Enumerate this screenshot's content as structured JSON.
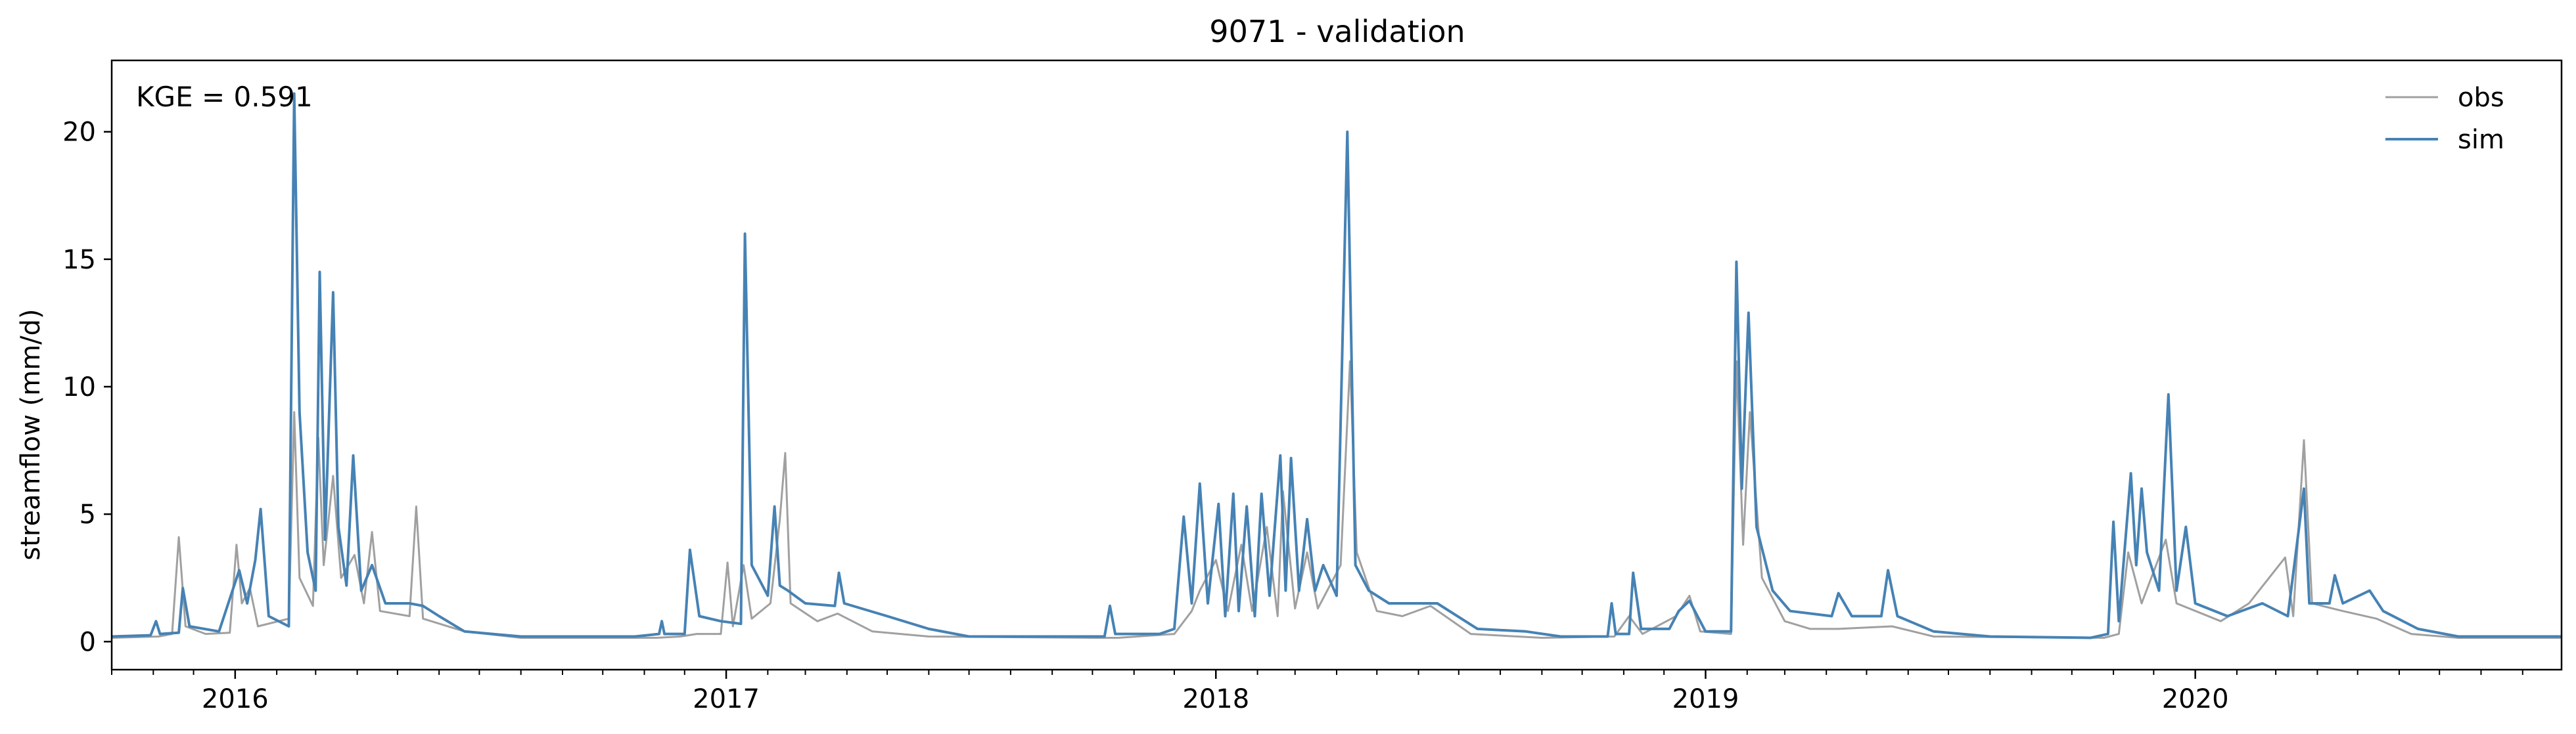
{
  "chart_data": {
    "type": "line",
    "title": "9071 - validation",
    "xlabel": "",
    "ylabel": "streamflow (mm/d)",
    "xlim": [
      "2015-10-01",
      "2020-09-30"
    ],
    "ylim": [
      -1.1,
      22.8
    ],
    "x_ticks": [
      "2016",
      "2017",
      "2018",
      "2019",
      "2020"
    ],
    "y_ticks": [
      "0",
      "5",
      "10",
      "15",
      "20"
    ],
    "y_tick_values": [
      0,
      5,
      10,
      15,
      20
    ],
    "grid": false,
    "legend_position": "top-right",
    "annotation": "KGE = 0.591",
    "series": [
      {
        "name": "obs",
        "color": "#a0a0a0",
        "points": [
          [
            "2015-10-01",
            0.15
          ],
          [
            "2015-11-05",
            0.2
          ],
          [
            "2015-11-15",
            0.3
          ],
          [
            "2015-11-20",
            4.1
          ],
          [
            "2015-11-25",
            0.6
          ],
          [
            "2015-12-10",
            0.3
          ],
          [
            "2015-12-28",
            0.35
          ],
          [
            "2016-01-02",
            3.8
          ],
          [
            "2016-01-06",
            1.5
          ],
          [
            "2016-01-12",
            2.1
          ],
          [
            "2016-01-18",
            0.6
          ],
          [
            "2016-02-10",
            0.9
          ],
          [
            "2016-02-14",
            9.0
          ],
          [
            "2016-02-18",
            2.5
          ],
          [
            "2016-02-28",
            1.4
          ],
          [
            "2016-03-03",
            8.0
          ],
          [
            "2016-03-07",
            3.0
          ],
          [
            "2016-03-14",
            6.5
          ],
          [
            "2016-03-20",
            2.5
          ],
          [
            "2016-03-30",
            3.4
          ],
          [
            "2016-04-06",
            1.5
          ],
          [
            "2016-04-12",
            4.3
          ],
          [
            "2016-04-18",
            1.2
          ],
          [
            "2016-05-10",
            1.0
          ],
          [
            "2016-05-15",
            5.3
          ],
          [
            "2016-05-20",
            0.9
          ],
          [
            "2016-06-20",
            0.4
          ],
          [
            "2016-08-01",
            0.15
          ],
          [
            "2016-11-10",
            0.15
          ],
          [
            "2016-11-28",
            0.2
          ],
          [
            "2016-12-10",
            0.3
          ],
          [
            "2016-12-28",
            0.3
          ],
          [
            "2017-01-02",
            3.1
          ],
          [
            "2017-01-06",
            0.6
          ],
          [
            "2017-01-14",
            3.0
          ],
          [
            "2017-01-20",
            0.9
          ],
          [
            "2017-02-03",
            1.5
          ],
          [
            "2017-02-10",
            4.8
          ],
          [
            "2017-02-14",
            7.4
          ],
          [
            "2017-02-18",
            1.5
          ],
          [
            "2017-03-10",
            0.8
          ],
          [
            "2017-03-25",
            1.1
          ],
          [
            "2017-04-20",
            0.4
          ],
          [
            "2017-06-01",
            0.2
          ],
          [
            "2017-10-01",
            0.15
          ],
          [
            "2017-10-20",
            0.15
          ],
          [
            "2017-12-01",
            0.3
          ],
          [
            "2017-12-14",
            1.2
          ],
          [
            "2017-12-20",
            2.0
          ],
          [
            "2018-01-01",
            3.2
          ],
          [
            "2018-01-10",
            1.2
          ],
          [
            "2018-01-20",
            3.8
          ],
          [
            "2018-01-28",
            1.2
          ],
          [
            "2018-02-08",
            4.5
          ],
          [
            "2018-02-16",
            1.0
          ],
          [
            "2018-02-20",
            5.9
          ],
          [
            "2018-03-01",
            1.3
          ],
          [
            "2018-03-10",
            3.5
          ],
          [
            "2018-03-18",
            1.3
          ],
          [
            "2018-04-04",
            3.0
          ],
          [
            "2018-04-11",
            11.0
          ],
          [
            "2018-04-16",
            3.5
          ],
          [
            "2018-05-01",
            1.2
          ],
          [
            "2018-05-20",
            1.0
          ],
          [
            "2018-06-10",
            1.4
          ],
          [
            "2018-07-10",
            0.3
          ],
          [
            "2018-09-01",
            0.15
          ],
          [
            "2018-10-25",
            0.2
          ],
          [
            "2018-11-05",
            1.0
          ],
          [
            "2018-11-15",
            0.3
          ],
          [
            "2018-12-10",
            1.0
          ],
          [
            "2018-12-20",
            1.8
          ],
          [
            "2018-12-28",
            0.4
          ],
          [
            "2019-01-20",
            0.3
          ],
          [
            "2019-01-24",
            11.0
          ],
          [
            "2019-01-29",
            3.8
          ],
          [
            "2019-02-03",
            9.0
          ],
          [
            "2019-02-12",
            2.5
          ],
          [
            "2019-03-01",
            0.8
          ],
          [
            "2019-03-20",
            0.5
          ],
          [
            "2019-04-10",
            0.5
          ],
          [
            "2019-05-20",
            0.6
          ],
          [
            "2019-06-20",
            0.2
          ],
          [
            "2019-10-25",
            0.15
          ],
          [
            "2019-11-05",
            0.3
          ],
          [
            "2019-11-12",
            3.5
          ],
          [
            "2019-11-22",
            1.5
          ],
          [
            "2019-12-10",
            4.0
          ],
          [
            "2019-12-18",
            1.5
          ],
          [
            "2020-01-20",
            0.8
          ],
          [
            "2020-02-10",
            1.5
          ],
          [
            "2020-03-08",
            3.3
          ],
          [
            "2020-03-14",
            1.0
          ],
          [
            "2020-03-22",
            7.9
          ],
          [
            "2020-03-28",
            1.5
          ],
          [
            "2020-04-20",
            1.2
          ],
          [
            "2020-05-15",
            0.9
          ],
          [
            "2020-06-10",
            0.3
          ],
          [
            "2020-07-15",
            0.15
          ],
          [
            "2020-09-30",
            0.15
          ]
        ]
      },
      {
        "name": "sim",
        "color": "#4682b4",
        "points": [
          [
            "2015-10-01",
            0.2
          ],
          [
            "2015-10-30",
            0.25
          ],
          [
            "2015-11-03",
            0.8
          ],
          [
            "2015-11-06",
            0.3
          ],
          [
            "2015-11-20",
            0.35
          ],
          [
            "2015-11-23",
            2.1
          ],
          [
            "2015-11-28",
            0.6
          ],
          [
            "2015-12-20",
            0.4
          ],
          [
            "2016-01-04",
            2.8
          ],
          [
            "2016-01-10",
            1.5
          ],
          [
            "2016-01-16",
            3.2
          ],
          [
            "2016-01-20",
            5.2
          ],
          [
            "2016-01-26",
            1.0
          ],
          [
            "2016-02-10",
            0.6
          ],
          [
            "2016-02-14",
            21.5
          ],
          [
            "2016-02-18",
            9.0
          ],
          [
            "2016-02-24",
            3.5
          ],
          [
            "2016-03-01",
            2.0
          ],
          [
            "2016-03-04",
            14.5
          ],
          [
            "2016-03-08",
            4.0
          ],
          [
            "2016-03-14",
            13.7
          ],
          [
            "2016-03-18",
            4.5
          ],
          [
            "2016-03-24",
            2.2
          ],
          [
            "2016-03-29",
            7.3
          ],
          [
            "2016-04-04",
            2.0
          ],
          [
            "2016-04-12",
            3.0
          ],
          [
            "2016-04-22",
            1.5
          ],
          [
            "2016-05-10",
            1.5
          ],
          [
            "2016-05-20",
            1.4
          ],
          [
            "2016-06-01",
            1.0
          ],
          [
            "2016-06-20",
            0.4
          ],
          [
            "2016-08-01",
            0.2
          ],
          [
            "2016-10-25",
            0.2
          ],
          [
            "2016-11-12",
            0.3
          ],
          [
            "2016-11-14",
            0.8
          ],
          [
            "2016-11-16",
            0.3
          ],
          [
            "2016-12-01",
            0.3
          ],
          [
            "2016-12-05",
            3.6
          ],
          [
            "2016-12-12",
            1.0
          ],
          [
            "2016-12-28",
            0.8
          ],
          [
            "2017-01-12",
            0.7
          ],
          [
            "2017-01-15",
            16.0
          ],
          [
            "2017-01-20",
            3.0
          ],
          [
            "2017-02-01",
            1.8
          ],
          [
            "2017-02-06",
            5.3
          ],
          [
            "2017-02-10",
            2.2
          ],
          [
            "2017-02-16",
            2.0
          ],
          [
            "2017-03-01",
            1.5
          ],
          [
            "2017-03-23",
            1.4
          ],
          [
            "2017-03-26",
            2.7
          ],
          [
            "2017-03-30",
            1.5
          ],
          [
            "2017-05-01",
            1.0
          ],
          [
            "2017-06-01",
            0.5
          ],
          [
            "2017-07-01",
            0.2
          ],
          [
            "2017-10-10",
            0.2
          ],
          [
            "2017-10-14",
            1.4
          ],
          [
            "2017-10-18",
            0.3
          ],
          [
            "2017-11-20",
            0.3
          ],
          [
            "2017-12-01",
            0.5
          ],
          [
            "2017-12-08",
            4.9
          ],
          [
            "2017-12-14",
            1.5
          ],
          [
            "2017-12-20",
            6.2
          ],
          [
            "2017-12-26",
            1.5
          ],
          [
            "2018-01-03",
            5.4
          ],
          [
            "2018-01-08",
            1.0
          ],
          [
            "2018-01-14",
            5.8
          ],
          [
            "2018-01-18",
            1.2
          ],
          [
            "2018-01-24",
            5.3
          ],
          [
            "2018-01-30",
            1.0
          ],
          [
            "2018-02-04",
            5.8
          ],
          [
            "2018-02-10",
            1.8
          ],
          [
            "2018-02-18",
            7.3
          ],
          [
            "2018-02-22",
            2.0
          ],
          [
            "2018-02-26",
            7.2
          ],
          [
            "2018-03-04",
            2.0
          ],
          [
            "2018-03-10",
            4.8
          ],
          [
            "2018-03-16",
            2.0
          ],
          [
            "2018-03-22",
            3.0
          ],
          [
            "2018-04-01",
            1.8
          ],
          [
            "2018-04-09",
            20.0
          ],
          [
            "2018-04-15",
            3.0
          ],
          [
            "2018-04-25",
            2.0
          ],
          [
            "2018-05-10",
            1.5
          ],
          [
            "2018-06-15",
            1.5
          ],
          [
            "2018-07-15",
            0.5
          ],
          [
            "2018-08-20",
            0.4
          ],
          [
            "2018-09-15",
            0.2
          ],
          [
            "2018-10-20",
            0.2
          ],
          [
            "2018-10-23",
            1.5
          ],
          [
            "2018-10-26",
            0.3
          ],
          [
            "2018-11-05",
            0.3
          ],
          [
            "2018-11-08",
            2.7
          ],
          [
            "2018-11-14",
            0.5
          ],
          [
            "2018-12-05",
            0.5
          ],
          [
            "2018-12-12",
            1.2
          ],
          [
            "2018-12-20",
            1.6
          ],
          [
            "2019-01-01",
            0.4
          ],
          [
            "2019-01-20",
            0.4
          ],
          [
            "2019-01-24",
            14.9
          ],
          [
            "2019-01-28",
            6.0
          ],
          [
            "2019-02-02",
            12.9
          ],
          [
            "2019-02-08",
            4.5
          ],
          [
            "2019-02-20",
            2.0
          ],
          [
            "2019-03-05",
            1.2
          ],
          [
            "2019-04-05",
            1.0
          ],
          [
            "2019-04-10",
            1.9
          ],
          [
            "2019-04-20",
            1.0
          ],
          [
            "2019-05-12",
            1.0
          ],
          [
            "2019-05-17",
            2.8
          ],
          [
            "2019-05-24",
            1.0
          ],
          [
            "2019-06-20",
            0.4
          ],
          [
            "2019-08-01",
            0.2
          ],
          [
            "2019-10-15",
            0.15
          ],
          [
            "2019-10-28",
            0.3
          ],
          [
            "2019-11-01",
            4.7
          ],
          [
            "2019-11-05",
            0.8
          ],
          [
            "2019-11-14",
            6.6
          ],
          [
            "2019-11-18",
            3.0
          ],
          [
            "2019-11-22",
            6.0
          ],
          [
            "2019-11-26",
            3.5
          ],
          [
            "2019-12-05",
            2.0
          ],
          [
            "2019-12-12",
            9.7
          ],
          [
            "2019-12-18",
            2.0
          ],
          [
            "2019-12-25",
            4.5
          ],
          [
            "2020-01-01",
            1.5
          ],
          [
            "2020-01-25",
            1.0
          ],
          [
            "2020-02-20",
            1.5
          ],
          [
            "2020-03-10",
            1.0
          ],
          [
            "2020-03-22",
            6.0
          ],
          [
            "2020-03-26",
            1.5
          ],
          [
            "2020-04-10",
            1.5
          ],
          [
            "2020-04-14",
            2.6
          ],
          [
            "2020-04-20",
            1.5
          ],
          [
            "2020-05-10",
            2.0
          ],
          [
            "2020-05-20",
            1.2
          ],
          [
            "2020-06-15",
            0.5
          ],
          [
            "2020-07-15",
            0.2
          ],
          [
            "2020-09-30",
            0.2
          ]
        ]
      }
    ]
  }
}
